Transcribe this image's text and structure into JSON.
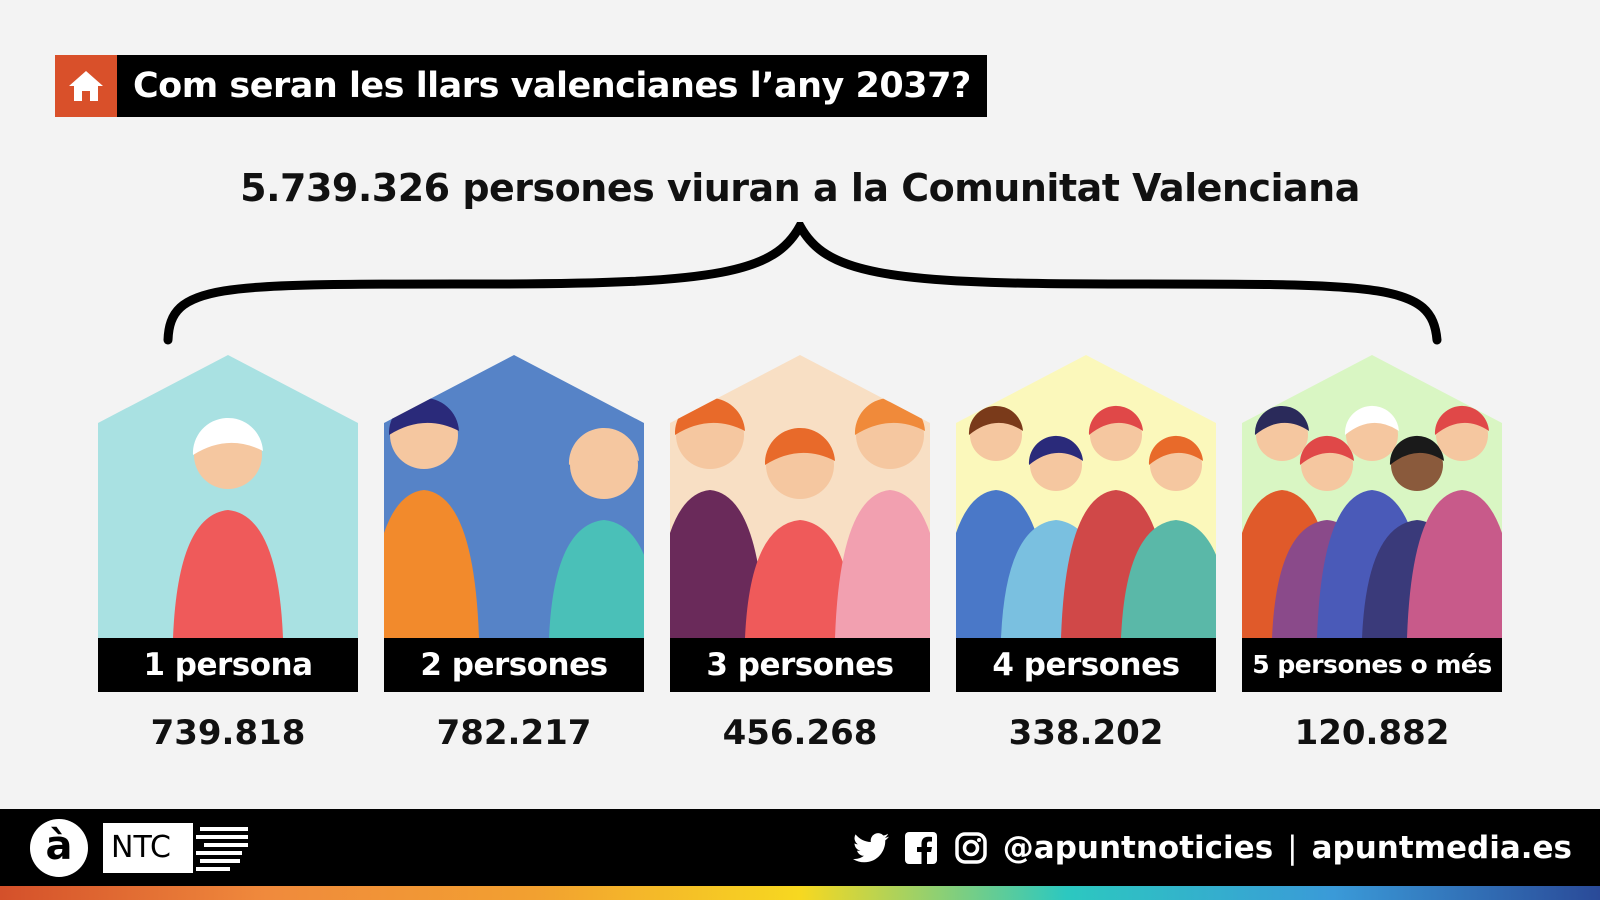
{
  "header": {
    "title": "Com seran les llars valencianes l’any 2037?",
    "icon": "home-icon",
    "accent": "#d9502a"
  },
  "subtitle": "5.739.326 persones viuran a la Comunitat Valenciana",
  "households": [
    {
      "label": "1 persona",
      "value": "739.818",
      "color": "#a9e1e2"
    },
    {
      "label": "2 persones",
      "value": "782.217",
      "color": "#5683c7"
    },
    {
      "label": "3 persones",
      "value": "456.268",
      "color": "#f8dfc4"
    },
    {
      "label": "4 persones",
      "value": "338.202",
      "color": "#fbf8bb"
    },
    {
      "label": "5 persones o més",
      "value": "120.882",
      "color": "#d9f6c3"
    }
  ],
  "footer": {
    "logo": "à",
    "brand": "NTC",
    "handle": "@apuntnoticies",
    "separator": "|",
    "site": "apuntmedia.es",
    "icons": [
      "twitter-icon",
      "facebook-icon",
      "instagram-icon"
    ]
  }
}
